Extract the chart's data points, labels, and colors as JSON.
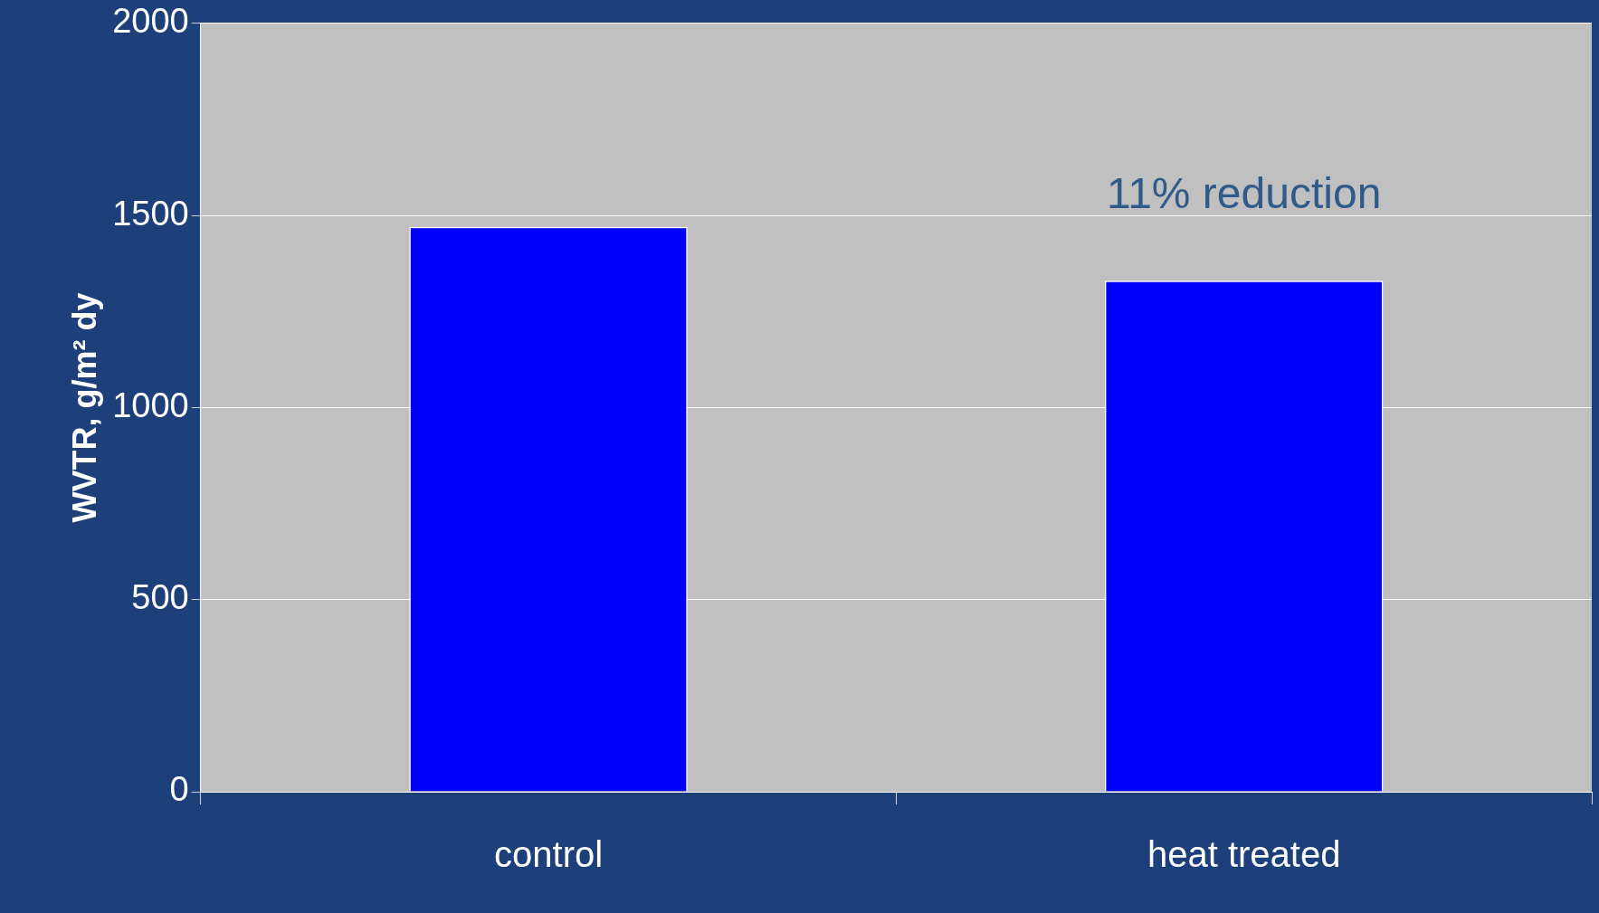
{
  "chart_data": {
    "type": "bar",
    "categories": [
      "control",
      "heat treated"
    ],
    "values": [
      1470,
      1330
    ],
    "color": "#0000ff",
    "ylabel": "WVTR, g/m² dy",
    "ylim": [
      0,
      2000
    ],
    "yticks": [
      0,
      500,
      1000,
      1500,
      2000
    ],
    "grid": "y",
    "annotations": [
      "11% reduction"
    ]
  }
}
